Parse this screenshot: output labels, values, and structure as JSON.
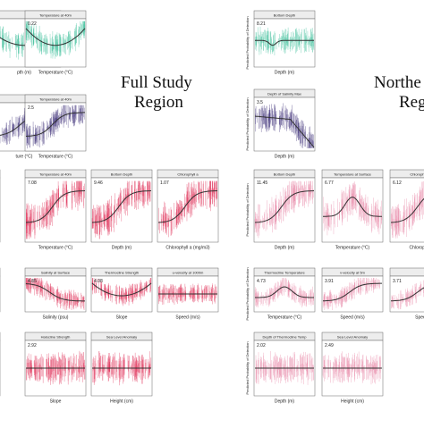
{
  "region_titles": {
    "full": [
      "Full Study",
      "Region"
    ],
    "north": [
      "Northe",
      "Reg"
    ]
  },
  "y_axis_label": "Predicted Probability of Detection",
  "colors": {
    "teal": "#3dbf9a",
    "purple": "#3d2f78",
    "red": "#e0335a",
    "pink": "#e88aa9",
    "trend": "#333333"
  },
  "panels": [
    {
      "id": "p1",
      "title": "",
      "value": "",
      "xlabel": "pth (m)",
      "color": "teal",
      "shape": "valley",
      "y_axis": false
    },
    {
      "id": "p2",
      "title": "Temperature at 40m",
      "value": "0.22",
      "xlabel": "Temperature (°C)",
      "color": "teal",
      "shape": "valley",
      "y_axis": false
    },
    {
      "id": "p3",
      "title": "",
      "value": "",
      "xlabel": "ture (°C)",
      "color": "purple",
      "shape": "rise",
      "y_axis": false
    },
    {
      "id": "p4",
      "title": "Temperature at 40m",
      "value": "2.5",
      "xlabel": "Temperature (°C)",
      "color": "purple",
      "shape": "rise",
      "y_axis": false
    },
    {
      "id": "p5",
      "title": "",
      "value": "",
      "xlabel": "ure",
      "color": "red",
      "shape": "flat",
      "y_axis": false
    },
    {
      "id": "p6",
      "title": "Temperature at 40m",
      "value": "7.08",
      "xlabel": "Temperature (°C)",
      "color": "red",
      "shape": "rise",
      "y_axis": false
    },
    {
      "id": "p7",
      "title": "Bottom Depth",
      "value": "9.46",
      "xlabel": "Depth (m)",
      "color": "red",
      "shape": "rise",
      "y_axis": false
    },
    {
      "id": "p8",
      "title": "Chlorophyll a",
      "value": "1.07",
      "xlabel": "Chlorophyll a (mg/m3)",
      "color": "red",
      "shape": "rise",
      "y_axis": false
    },
    {
      "id": "p9",
      "title": "",
      "value": "",
      "xlabel": "(m)",
      "color": "red",
      "shape": "flat",
      "y_axis": false
    },
    {
      "id": "p10",
      "title": "Salinity at Surface",
      "value": "4.85",
      "xlabel": "Salinity (psu)",
      "color": "red",
      "shape": "fall",
      "y_axis": false
    },
    {
      "id": "p11",
      "title": "Thermocline Strength",
      "value": "4.08",
      "xlabel": "Slope",
      "color": "red",
      "shape": "valley",
      "y_axis": false
    },
    {
      "id": "p12",
      "title": "u-velocity at 1000m",
      "value": "",
      "xlabel": "Speed (m/s)",
      "color": "red",
      "shape": "flat",
      "y_axis": false
    },
    {
      "id": "p13",
      "title": "",
      "value": "",
      "xlabel": "",
      "color": "red",
      "shape": "flat",
      "y_axis": false
    },
    {
      "id": "p14",
      "title": "Halocline Strength",
      "value": "2.92",
      "xlabel": "Slope",
      "color": "red",
      "shape": "flat",
      "y_axis": false
    },
    {
      "id": "p15",
      "title": "Sea Level Anomaly",
      "value": "",
      "xlabel": "Height (cm)",
      "color": "red",
      "shape": "flat",
      "y_axis": false
    },
    {
      "id": "n1",
      "title": "Bottom Depth",
      "value": "8.21",
      "xlabel": "Depth (m)",
      "color": "teal",
      "shape": "dip",
      "y_axis": true
    },
    {
      "id": "n2",
      "title": "Depth of Salinity Max",
      "value": "3.5",
      "xlabel": "Depth (m)",
      "color": "purple",
      "shape": "drop",
      "y_axis": true
    },
    {
      "id": "n3",
      "title": "Bottom Depth",
      "value": "11.45",
      "xlabel": "Depth (m)",
      "color": "pink",
      "shape": "rise",
      "y_axis": true
    },
    {
      "id": "n4",
      "title": "Temperature at Surface",
      "value": "6.77",
      "xlabel": "Temperature (°C)",
      "color": "pink",
      "shape": "hump",
      "y_axis": false
    },
    {
      "id": "n5",
      "title": "Chlorophyll a",
      "value": "6.12",
      "xlabel": "Chlorophyll",
      "color": "pink",
      "shape": "rise",
      "y_axis": false
    },
    {
      "id": "n6",
      "title": "Thermocline Temperature",
      "value": "4.73",
      "xlabel": "Temperature (°C)",
      "color": "pink",
      "shape": "hump",
      "y_axis": true
    },
    {
      "id": "n7",
      "title": "v-velocity at 5m",
      "value": "3.91",
      "xlabel": "Speed (m/s)",
      "color": "pink",
      "shape": "rise",
      "y_axis": false
    },
    {
      "id": "n8",
      "title": "",
      "value": "3.71",
      "xlabel": "Spee",
      "color": "pink",
      "shape": "rise",
      "y_axis": false
    },
    {
      "id": "n9",
      "title": "Depth of Thermocline Temp",
      "value": "2.02",
      "xlabel": "Depth (m)",
      "color": "pink",
      "shape": "flat",
      "y_axis": true
    },
    {
      "id": "n10",
      "title": "Sea Level Anomaly",
      "value": "2.49",
      "xlabel": "Height (cm)",
      "color": "pink",
      "shape": "flat",
      "y_axis": false
    }
  ]
}
